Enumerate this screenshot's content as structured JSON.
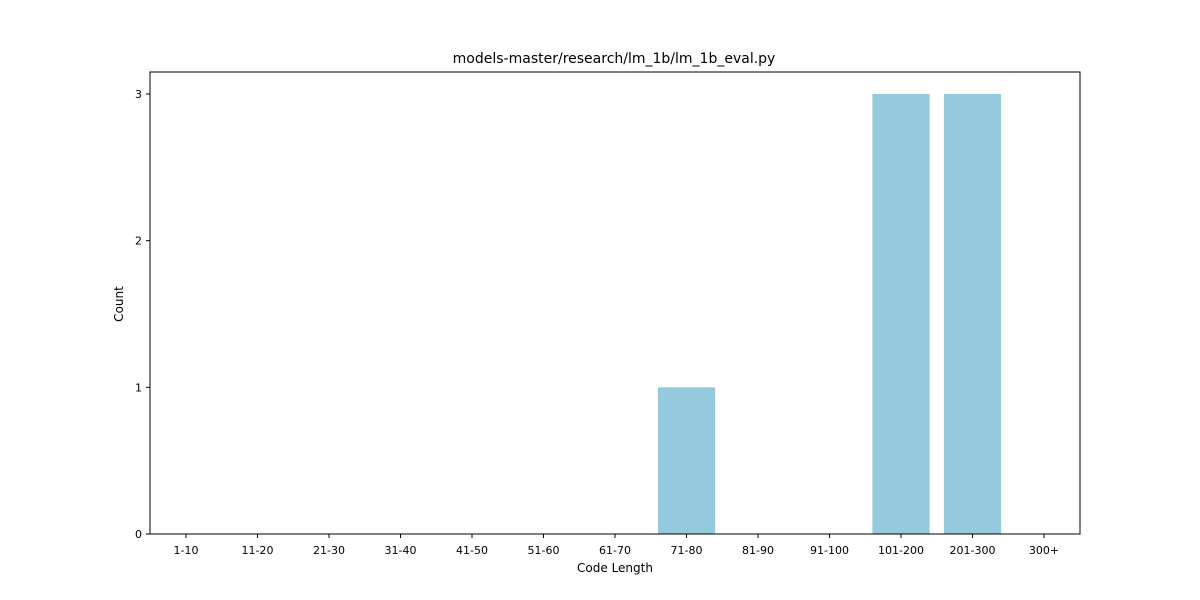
{
  "chart_data": {
    "type": "bar",
    "title": "models-master/research/lm_1b/lm_1b_eval.py",
    "xlabel": "Code Length",
    "ylabel": "Count",
    "categories": [
      "1-10",
      "11-20",
      "21-30",
      "31-40",
      "41-50",
      "51-60",
      "61-70",
      "71-80",
      "81-90",
      "91-100",
      "101-200",
      "201-300",
      "300+"
    ],
    "values": [
      0,
      0,
      0,
      0,
      0,
      0,
      0,
      1,
      0,
      0,
      3,
      3,
      0
    ],
    "ylim": [
      0,
      3.15
    ],
    "yticks": [
      0,
      1,
      2,
      3
    ],
    "bar_color": "#95c9dd",
    "grid": false,
    "legend": "none"
  }
}
